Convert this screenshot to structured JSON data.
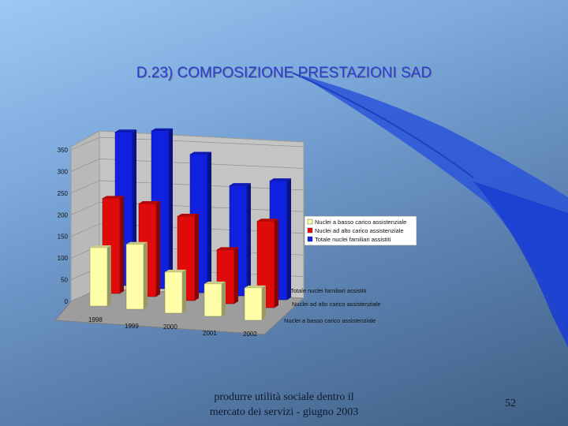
{
  "slide": {
    "title": "D.23) COMPOSIZIONE PRESTAZIONI SAD",
    "footer_line1": "produrre utilità sociale dentro il",
    "footer_line2": "mercato dei servizi - giugno 2003",
    "page_number": "52"
  },
  "chart_data": {
    "type": "bar",
    "subtype": "3d-clustered-depth",
    "categories": [
      "1998",
      "1999",
      "2000",
      "2001",
      "2002"
    ],
    "series": [
      {
        "name": "Totale nuclei familiari assistiti",
        "color": "#1020e0",
        "values": [
          355,
          365,
          320,
          255,
          275
        ]
      },
      {
        "name": "Nuclei ad alto carico assistenziale",
        "color": "#e00a0a",
        "values": [
          220,
          215,
          195,
          125,
          200
        ]
      },
      {
        "name": "Nuclei a basso carico assistenziale",
        "color": "#ffffa8",
        "values": [
          135,
          150,
          95,
          75,
          75
        ]
      }
    ],
    "legend_order": [
      "Nuclei a basso carico assistenziale",
      "Nuclei ad alto carico assistenziale",
      "Totale nuclei familiari assistiti"
    ],
    "yticks": [
      0,
      50,
      100,
      150,
      200,
      250,
      300,
      350
    ],
    "ylim": [
      0,
      350
    ],
    "grid": true,
    "legend_position": "right"
  }
}
